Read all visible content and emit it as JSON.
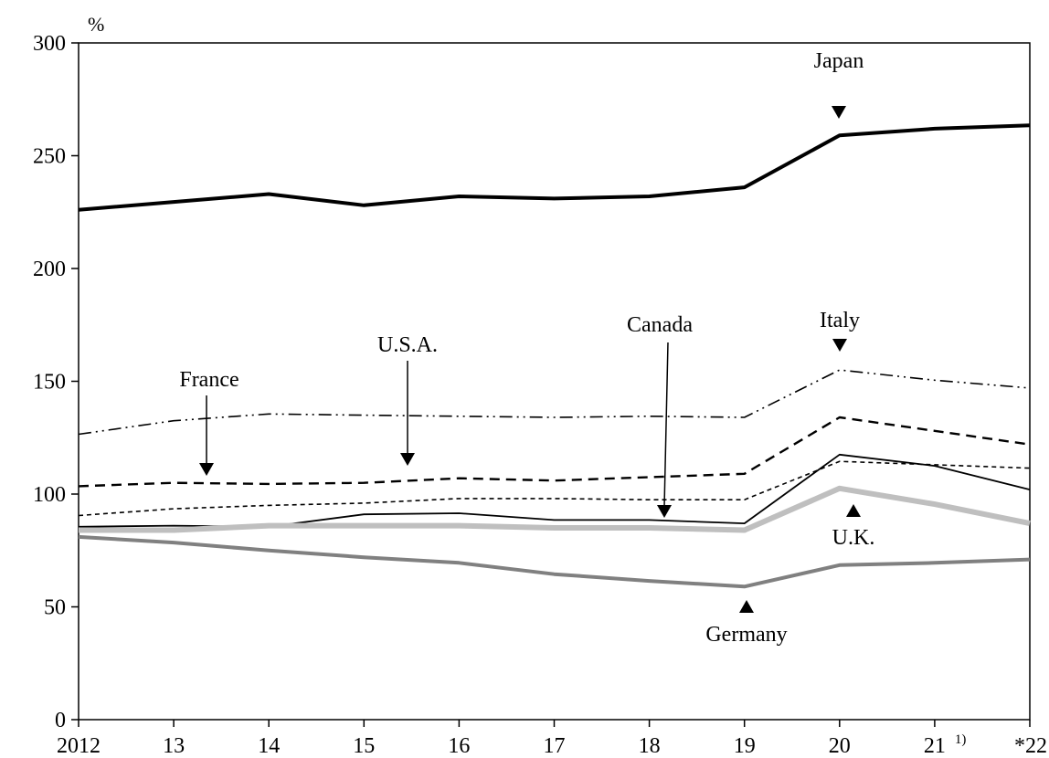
{
  "chart_data": {
    "type": "line",
    "unit_label": "%",
    "x": [
      "2012",
      "13",
      "14",
      "15",
      "16",
      "17",
      "18",
      "19",
      "20",
      "21",
      "*22"
    ],
    "x_footnote": "1)",
    "ylim": [
      0,
      300
    ],
    "y_ticks": [
      0,
      50,
      100,
      150,
      200,
      250,
      300
    ],
    "grid": false,
    "series": [
      {
        "name": "Japan",
        "values": [
          226,
          229.5,
          233,
          228,
          232,
          231,
          232,
          236,
          259,
          262,
          263.5
        ]
      },
      {
        "name": "Italy",
        "values": [
          126.5,
          132.5,
          135.5,
          135,
          134.5,
          134,
          134.5,
          134,
          155,
          150.5,
          147
        ]
      },
      {
        "name": "U.S.A.",
        "values": [
          103.5,
          105,
          104.5,
          105,
          107,
          106,
          107.5,
          109,
          134,
          128,
          122
        ]
      },
      {
        "name": "France",
        "values": [
          90.5,
          93.5,
          95,
          96,
          98,
          98,
          97.5,
          97.5,
          114.5,
          113,
          111.5
        ]
      },
      {
        "name": "Canada",
        "values": [
          85.5,
          86,
          85.5,
          91,
          91.5,
          88.5,
          88.5,
          87,
          117.5,
          112.5,
          102
        ]
      },
      {
        "name": "U.K.",
        "values": [
          84,
          84,
          86,
          86,
          86,
          85,
          85,
          84,
          102.5,
          95.5,
          87
        ]
      },
      {
        "name": "Germany",
        "values": [
          81,
          78.5,
          75,
          72,
          69.5,
          64.5,
          61.5,
          59,
          68.5,
          69.5,
          71
        ]
      }
    ]
  }
}
